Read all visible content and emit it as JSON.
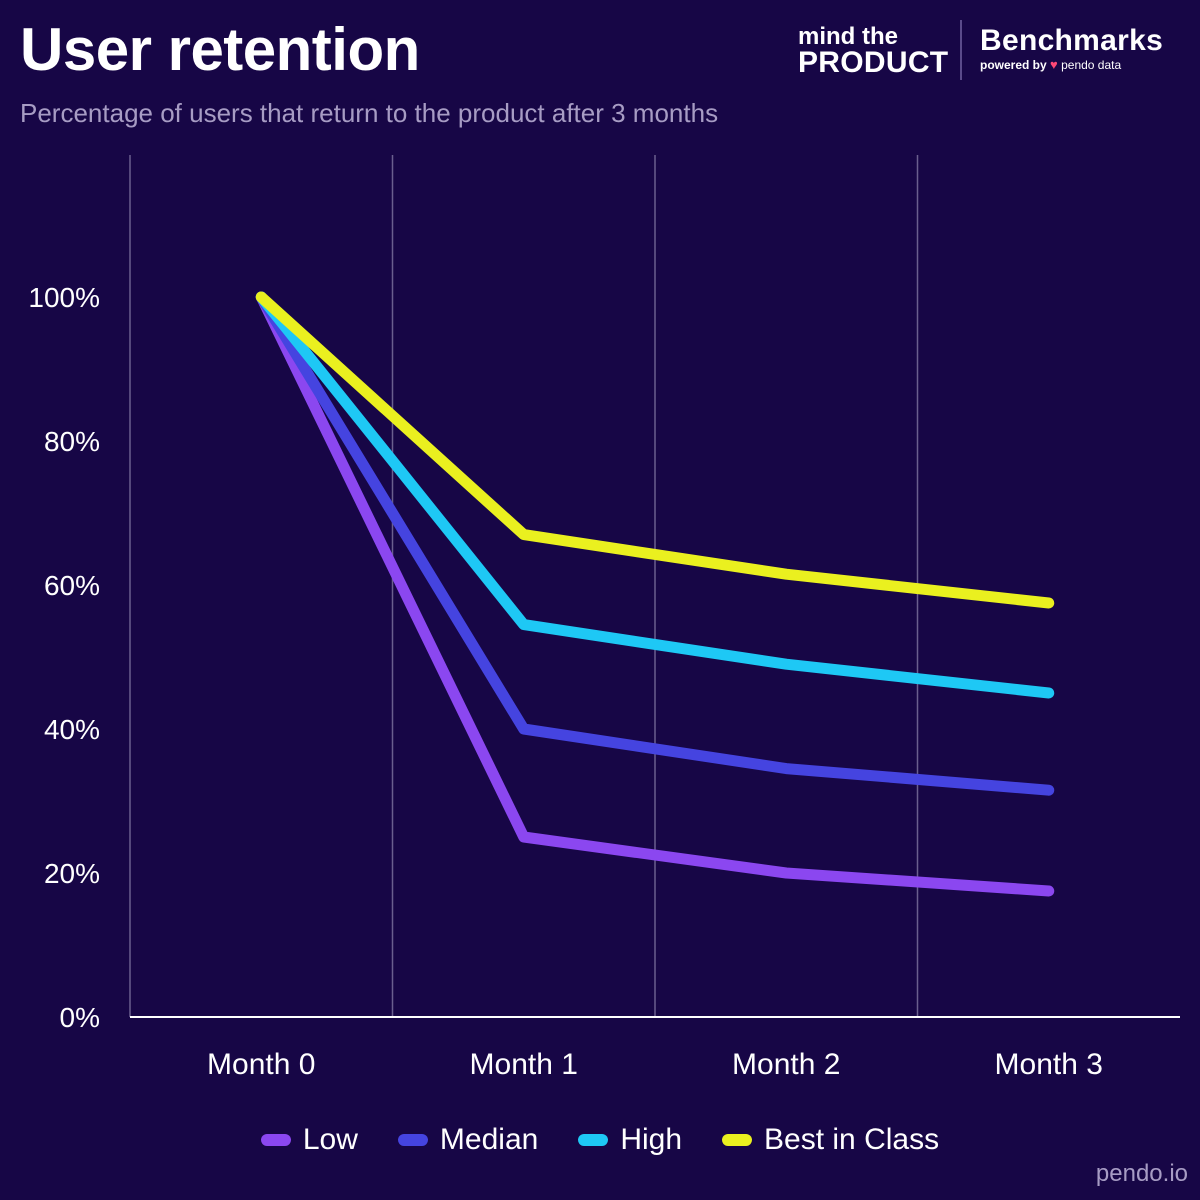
{
  "header": {
    "title": "User retention",
    "subtitle": "Percentage of users that return to the product after 3 months"
  },
  "brand": {
    "mtp_line1": "mind the",
    "mtp_line2": "PRODUCT",
    "benchmarks": "Benchmarks",
    "powered_by": "powered by",
    "pendo_mark": "♥",
    "pendo_data": "pendo data"
  },
  "footer": {
    "text": "pendo.io"
  },
  "colors": {
    "background": "#170646",
    "grid": "#6a5f8e",
    "axis": "#ffffff",
    "low": "#8b47f0",
    "median": "#4544e0",
    "high": "#1ec8f5",
    "best": "#eaf01f"
  },
  "chart_data": {
    "type": "line",
    "title": "User retention",
    "subtitle": "Percentage of users that return to the product after 3 months",
    "categories": [
      "Month 0",
      "Month 1",
      "Month 2",
      "Month 3"
    ],
    "y_ticks": [
      "0%",
      "20%",
      "40%",
      "60%",
      "80%",
      "100%"
    ],
    "ylim": [
      0,
      100
    ],
    "grid": "vertical",
    "legend_position": "bottom-center",
    "series": [
      {
        "name": "Low",
        "values": [
          100,
          25,
          20,
          17.5
        ],
        "color": "#8b47f0"
      },
      {
        "name": "Median",
        "values": [
          100,
          40,
          34.5,
          31.5
        ],
        "color": "#4544e0"
      },
      {
        "name": "High",
        "values": [
          100,
          54.5,
          49,
          45
        ],
        "color": "#1ec8f5"
      },
      {
        "name": "Best in Class",
        "values": [
          100,
          67,
          61.5,
          57.5
        ],
        "color": "#eaf01f"
      }
    ]
  }
}
